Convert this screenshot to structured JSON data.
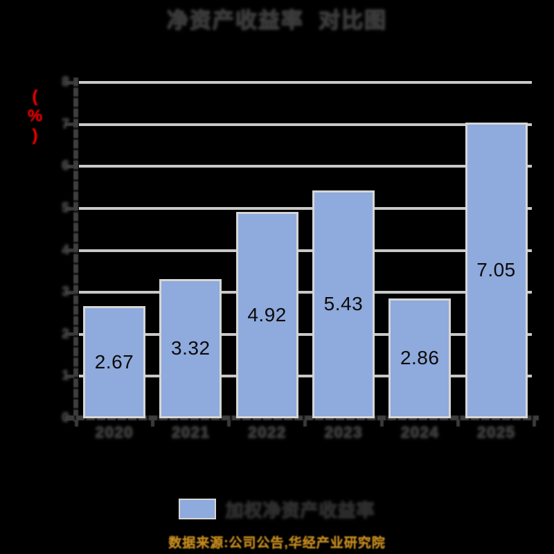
{
  "title": {
    "text": "净资产收益率  对比图"
  },
  "y_axis": {
    "unit_label": "(%)",
    "unit_color": "#ea0000",
    "tick_labels": [
      "0",
      "1",
      "2",
      "3",
      "4",
      "5",
      "6",
      "7",
      "8"
    ]
  },
  "chart_data": {
    "type": "bar",
    "title": "净资产收益率  对比图",
    "categories": [
      "2020",
      "2021",
      "2022",
      "2023",
      "2024",
      "2025"
    ],
    "values": [
      2.67,
      3.32,
      4.92,
      5.43,
      2.86,
      7.05
    ],
    "data_labels": [
      "2.67",
      "3.32",
      "4.92",
      "5.43",
      "2.86",
      "7.05"
    ],
    "ylabel": "(%)",
    "ylim": [
      0,
      8
    ],
    "ytick_step": 1,
    "grid": true,
    "legend_position": "bottom",
    "bar_color": "#8faadc",
    "bar_border_color": "#d6d6d6",
    "gridline_color": "#c9c9c9",
    "axis_color": "#3a3a3a",
    "data_label_color": "#0a0a0a",
    "background_color": "#000000"
  },
  "legend": {
    "swatch_color": "#8faadc",
    "label": "加权净资产收益率"
  },
  "source": {
    "text": "数据来源:公司公告,华经产业研究院",
    "color": "#c28a1e"
  }
}
